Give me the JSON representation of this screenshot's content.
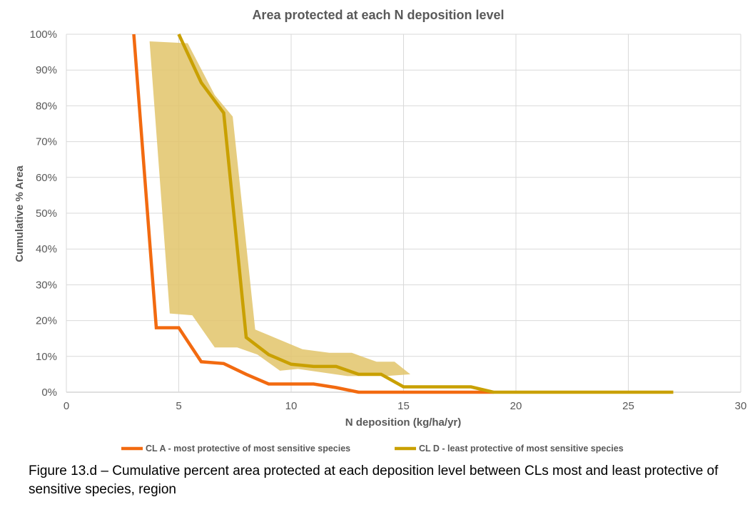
{
  "chart_data": {
    "type": "line",
    "title": "Area protected at each N  deposition level",
    "xlabel": "N deposition (kg/ha/yr)",
    "ylabel": "Cumulative % Area",
    "xlim": [
      0,
      30
    ],
    "ylim": [
      0,
      100
    ],
    "x_ticks": [
      0,
      5,
      10,
      15,
      20,
      25,
      30
    ],
    "x_tick_labels": [
      "0",
      "5",
      "10",
      "15",
      "20",
      "25",
      "30"
    ],
    "y_ticks": [
      0,
      10,
      20,
      30,
      40,
      50,
      60,
      70,
      80,
      90,
      100
    ],
    "y_tick_labels": [
      "0%",
      "10%",
      "20%",
      "30%",
      "40%",
      "50%",
      "60%",
      "70%",
      "80%",
      "90%",
      "100%"
    ],
    "grid": true,
    "legend_position": "bottom",
    "series": [
      {
        "name": "CL A  - most protective of most sensitive species",
        "color": "#f26a10",
        "points": [
          [
            3,
            100
          ],
          [
            4,
            18
          ],
          [
            5,
            18
          ],
          [
            6,
            8.5
          ],
          [
            7,
            8
          ],
          [
            8,
            5
          ],
          [
            9,
            2.3
          ],
          [
            10,
            2.3
          ],
          [
            11,
            2.3
          ],
          [
            12,
            1.3
          ],
          [
            13,
            0
          ],
          [
            15,
            0
          ],
          [
            18,
            0
          ],
          [
            19,
            0
          ]
        ]
      },
      {
        "name": "CL D -  least protective of most sensitive species",
        "color": "#c9a000",
        "points": [
          [
            5,
            100
          ],
          [
            6,
            86.5
          ],
          [
            7,
            78
          ],
          [
            8,
            15.3
          ],
          [
            9,
            10.5
          ],
          [
            10,
            7.8
          ],
          [
            11,
            7.2
          ],
          [
            12,
            7.2
          ],
          [
            13,
            5
          ],
          [
            14,
            5
          ],
          [
            15,
            1.5
          ],
          [
            16,
            1.5
          ],
          [
            17,
            1.5
          ],
          [
            18,
            1.5
          ],
          [
            19,
            0
          ],
          [
            20,
            0
          ],
          [
            25,
            0
          ],
          [
            27,
            0
          ]
        ]
      }
    ],
    "band": {
      "color": "#e2c46a",
      "upper": [
        [
          3.7,
          98
        ],
        [
          5.4,
          97.5
        ],
        [
          6.6,
          83
        ],
        [
          7.4,
          77
        ],
        [
          8.4,
          17.5
        ],
        [
          10.5,
          12
        ],
        [
          11.7,
          11
        ],
        [
          12.7,
          11
        ],
        [
          13.8,
          8.5
        ],
        [
          14.6,
          8.5
        ],
        [
          15.3,
          5
        ]
      ],
      "lower": [
        [
          15.3,
          5
        ],
        [
          14.2,
          4.5
        ],
        [
          12.5,
          4.5
        ],
        [
          10.3,
          6.5
        ],
        [
          9.5,
          6
        ],
        [
          8.5,
          10.5
        ],
        [
          7.6,
          12.5
        ],
        [
          6.6,
          12.5
        ],
        [
          5.6,
          21.5
        ],
        [
          4.6,
          22
        ]
      ]
    }
  },
  "caption": "Figure 13.d – Cumulative percent area protected at each deposition level between CLs most and least protective of sensitive species, region"
}
